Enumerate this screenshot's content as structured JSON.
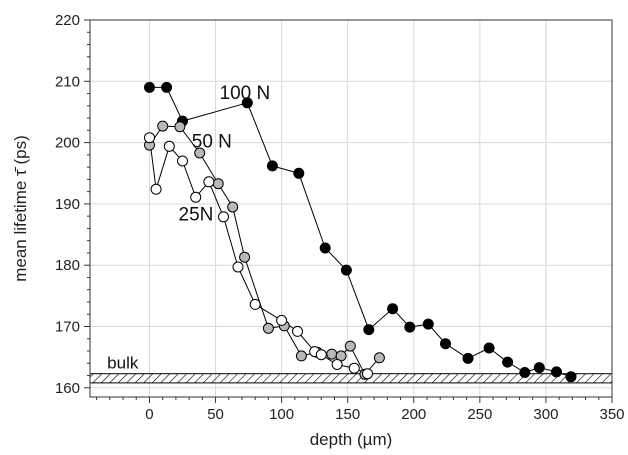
{
  "chart_data": {
    "type": "line",
    "title": "",
    "xlabel": "depth (µm)",
    "ylabel": "mean lifetime τ̄ (ps)",
    "xlim": [
      -45,
      350
    ],
    "ylim": [
      158.5,
      220
    ],
    "x_ticks": [
      0,
      50,
      100,
      150,
      200,
      250,
      300,
      350
    ],
    "y_ticks": [
      160,
      170,
      180,
      190,
      200,
      210,
      220
    ],
    "grid": true,
    "colors": {
      "series_100N": "#000000",
      "series_50N": "#b8b8b8",
      "series_25N": "#ffffff",
      "line": "#000000",
      "grid": "#d9d9d9"
    },
    "series": [
      {
        "name": "100 N",
        "fill": "black",
        "points": [
          [
            0,
            209
          ],
          [
            13,
            209
          ],
          [
            25,
            203.5
          ],
          [
            74,
            206.5
          ],
          [
            93,
            196.2
          ],
          [
            113,
            195
          ],
          [
            133,
            182.8
          ],
          [
            149,
            179.2
          ],
          [
            166,
            169.5
          ],
          [
            184,
            172.9
          ],
          [
            197,
            169.9
          ],
          [
            211,
            170.4
          ],
          [
            224,
            167.2
          ],
          [
            241,
            164.8
          ],
          [
            257,
            166.5
          ],
          [
            271,
            164.2
          ],
          [
            284,
            162.5
          ],
          [
            295,
            163.3
          ],
          [
            308,
            162.6
          ],
          [
            319,
            161.8
          ]
        ]
      },
      {
        "name": "50 N",
        "fill": "gray",
        "points": [
          [
            0,
            199.6
          ],
          [
            10,
            202.7
          ],
          [
            23,
            202.6
          ],
          [
            38,
            198.3
          ],
          [
            52,
            193.3
          ],
          [
            63,
            189.5
          ],
          [
            72,
            181.3
          ],
          [
            90,
            169.7
          ],
          [
            102,
            170.1
          ],
          [
            115,
            165.2
          ],
          [
            127,
            165.8
          ],
          [
            138,
            165.5
          ],
          [
            145,
            165.2
          ],
          [
            152,
            166.8
          ],
          [
            163,
            162.2
          ],
          [
            174,
            164.9
          ]
        ]
      },
      {
        "name": "25N",
        "fill": "white",
        "points": [
          [
            0,
            200.8
          ],
          [
            5,
            192.4
          ],
          [
            15,
            199.4
          ],
          [
            25,
            197
          ],
          [
            35,
            191.1
          ],
          [
            45,
            193.6
          ],
          [
            56,
            187.9
          ],
          [
            67,
            179.7
          ],
          [
            80,
            173.6
          ],
          [
            100,
            171
          ],
          [
            112,
            169.2
          ],
          [
            125,
            165.9
          ],
          [
            130,
            165.4
          ],
          [
            142,
            163.8
          ],
          [
            155,
            163.2
          ],
          [
            165,
            162.3
          ]
        ]
      }
    ],
    "annotations": [
      {
        "text": "100 N",
        "x": 53,
        "y": 207.1
      },
      {
        "text": "50 N",
        "x": 32,
        "y": 199.2
      },
      {
        "text": "25N",
        "x": 22,
        "y": 187.3
      }
    ],
    "bulk": {
      "label": "bulk",
      "y_range": [
        160.8,
        162.3
      ]
    }
  }
}
